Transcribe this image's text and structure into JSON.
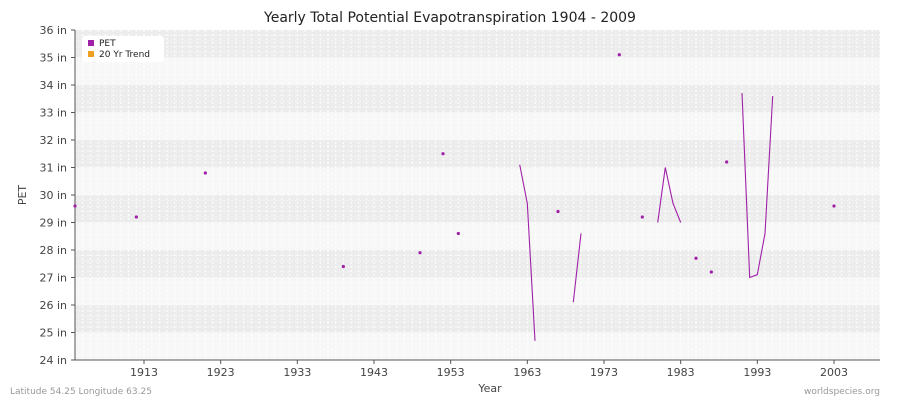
{
  "chart_data": {
    "type": "line",
    "title": "Yearly Total Potential Evapotranspiration 1904 - 2009",
    "xlabel": "Year",
    "ylabel": "PET",
    "xlim": [
      1904,
      2009
    ],
    "ylim": [
      24,
      36
    ],
    "x_ticks": [
      1913,
      1923,
      1933,
      1943,
      1953,
      1963,
      1973,
      1983,
      1993,
      2003
    ],
    "y_ticks": [
      "24 in",
      "25 in",
      "26 in",
      "27 in",
      "28 in",
      "29 in",
      "30 in",
      "31 in",
      "32 in",
      "33 in",
      "34 in",
      "35 in",
      "36 in"
    ],
    "y_unit": "in",
    "grid": true,
    "legend_position": "top-left",
    "series": [
      {
        "name": "PET",
        "color": "#a020a8",
        "points": [
          [
            1904,
            29.6
          ],
          [
            1912,
            29.2
          ],
          [
            1921,
            30.8
          ],
          [
            1939,
            27.4
          ],
          [
            1949,
            27.9
          ],
          [
            1952,
            31.5
          ],
          [
            1954,
            28.6
          ],
          [
            1962,
            31.1
          ],
          [
            1963,
            29.7
          ],
          [
            1964,
            24.7
          ],
          [
            1967,
            29.4
          ],
          [
            1969,
            26.1
          ],
          [
            1970,
            28.6
          ],
          [
            1975,
            35.1
          ],
          [
            1978,
            29.2
          ],
          [
            1980,
            29.0
          ],
          [
            1981,
            31.0
          ],
          [
            1982,
            29.7
          ],
          [
            1983,
            29.0
          ],
          [
            1985,
            27.7
          ],
          [
            1987,
            27.2
          ],
          [
            1989,
            31.2
          ],
          [
            1991,
            33.7
          ],
          [
            1992,
            27.0
          ],
          [
            1993,
            27.1
          ],
          [
            1994,
            28.6
          ],
          [
            1995,
            33.6
          ],
          [
            2003,
            29.6
          ]
        ]
      },
      {
        "name": "20 Yr Trend",
        "color": "#f0a020",
        "points": []
      }
    ]
  },
  "footer": {
    "left": "Latitude 54.25 Longitude 63.25",
    "right": "worldspecies.org"
  }
}
